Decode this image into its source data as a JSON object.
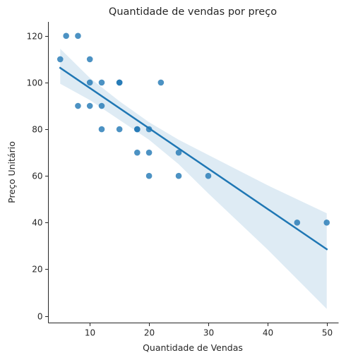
{
  "chart_data": {
    "type": "scatter",
    "title": "Quantidade de vendas por preço",
    "xlabel": "Quantidade de Vendas",
    "ylabel": "Preço Unitário",
    "xlim": [
      3.0,
      52.0
    ],
    "ylim": [
      -3.0,
      126.0
    ],
    "xticks": [
      10,
      20,
      30,
      40,
      50
    ],
    "yticks": [
      0,
      20,
      40,
      60,
      80,
      100,
      120
    ],
    "grid": false,
    "colors": {
      "points": "#1f77b4",
      "regression_line": "#1f77b4",
      "confidence_band": "#1f77b4"
    },
    "points": [
      {
        "x": 5,
        "y": 110
      },
      {
        "x": 6,
        "y": 120
      },
      {
        "x": 8,
        "y": 120
      },
      {
        "x": 8,
        "y": 90
      },
      {
        "x": 10,
        "y": 110
      },
      {
        "x": 10,
        "y": 100
      },
      {
        "x": 10,
        "y": 90
      },
      {
        "x": 12,
        "y": 100
      },
      {
        "x": 12,
        "y": 90
      },
      {
        "x": 12,
        "y": 80
      },
      {
        "x": 15,
        "y": 100
      },
      {
        "x": 15,
        "y": 100
      },
      {
        "x": 15,
        "y": 80
      },
      {
        "x": 18,
        "y": 80
      },
      {
        "x": 18,
        "y": 80
      },
      {
        "x": 18,
        "y": 70
      },
      {
        "x": 20,
        "y": 80
      },
      {
        "x": 20,
        "y": 70
      },
      {
        "x": 20,
        "y": 60
      },
      {
        "x": 22,
        "y": 100
      },
      {
        "x": 25,
        "y": 70
      },
      {
        "x": 25,
        "y": 60
      },
      {
        "x": 30,
        "y": 60
      },
      {
        "x": 45,
        "y": 40
      },
      {
        "x": 50,
        "y": 40
      }
    ],
    "regression": {
      "x0": 5,
      "y0": 106.3,
      "x1": 50,
      "y1": 28.6
    },
    "confidence_band": [
      {
        "x": 5,
        "lower": 99.5,
        "upper": 114.5
      },
      {
        "x": 10,
        "lower": 92.5,
        "upper": 102.0
      },
      {
        "x": 15,
        "lower": 84.0,
        "upper": 92.0
      },
      {
        "x": 20,
        "lower": 75.5,
        "upper": 83.0
      },
      {
        "x": 25,
        "lower": 65.0,
        "upper": 75.5
      },
      {
        "x": 30,
        "lower": 52.5,
        "upper": 69.0
      },
      {
        "x": 40,
        "lower": 28.5,
        "upper": 56.0
      },
      {
        "x": 50,
        "lower": 3.0,
        "upper": 44.0
      }
    ]
  }
}
